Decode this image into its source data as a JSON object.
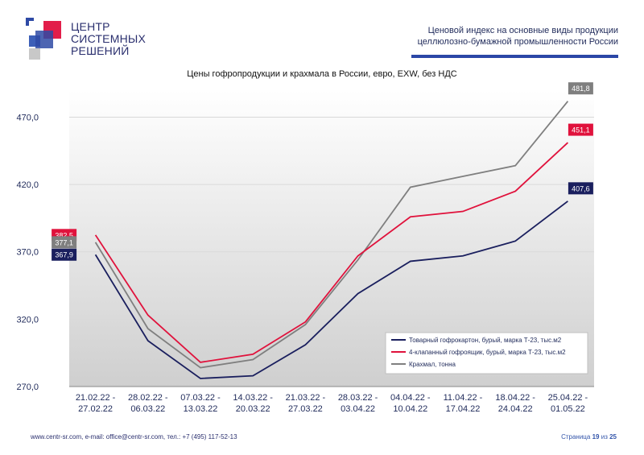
{
  "logo": {
    "line1": "ЦЕНТР",
    "line2": "СИСТЕМНЫХ",
    "line3": "РЕШЕНИЙ"
  },
  "header": {
    "line1": "Ценовой индекс на основные виды продукции",
    "line2": "целлюлозно-бумажной промышленности России"
  },
  "colors": {
    "accent": "#2b47a6",
    "series1": "#1a1f5e",
    "series2": "#e0123c",
    "series3": "#7f7f7f"
  },
  "chart_data": {
    "type": "line",
    "title": "Цены гофропродукции и крахмала в России, евро, EXW, без НДС",
    "categories": [
      [
        "21.02.22 -",
        "27.02.22"
      ],
      [
        "28.02.22 -",
        "06.03.22"
      ],
      [
        "07.03.22 -",
        "13.03.22"
      ],
      [
        "14.03.22 -",
        "20.03.22"
      ],
      [
        "21.03.22 -",
        "27.03.22"
      ],
      [
        "28.03.22 -",
        "03.04.22"
      ],
      [
        "04.04.22 -",
        "10.04.22"
      ],
      [
        "11.04.22 -",
        "17.04.22"
      ],
      [
        "18.04.22 -",
        "24.04.22"
      ],
      [
        "25.04.22 -",
        "01.05.22"
      ]
    ],
    "ylim": [
      270,
      490
    ],
    "yticks": [
      "270,0",
      "320,0",
      "370,0",
      "420,0",
      "470,0"
    ],
    "ytick_values": [
      270,
      320,
      370,
      420,
      470
    ],
    "legend_position": "bottom-right",
    "series": [
      {
        "name": "Товарный гофрокартон, бурый, марка Т-23, тыс.м2",
        "values": [
          367.9,
          304,
          276,
          278,
          301,
          339,
          363,
          367,
          378,
          407.6
        ],
        "first_label": "367,9",
        "last_label": "407,6"
      },
      {
        "name": "4-клапанный гофроящик, бурый, марка Т-23, тыс.м2",
        "values": [
          382.5,
          323,
          288,
          294,
          318,
          367,
          396,
          400,
          415,
          451.1
        ],
        "first_label": "382,5",
        "last_label": "451,1"
      },
      {
        "name": "Крахмал, тонна",
        "values": [
          377.1,
          313,
          284,
          290,
          316,
          364,
          418,
          426,
          434,
          481.8
        ],
        "first_label": "377,1",
        "last_label": "481,8"
      }
    ]
  },
  "footer": {
    "contacts": "www.centr-sr.com, e-mail: office@centr-sr.com, тел.: +7 (495) 117-52-13",
    "page_word": "Страница",
    "page_num": "19",
    "page_of": "из",
    "page_total": "25"
  }
}
